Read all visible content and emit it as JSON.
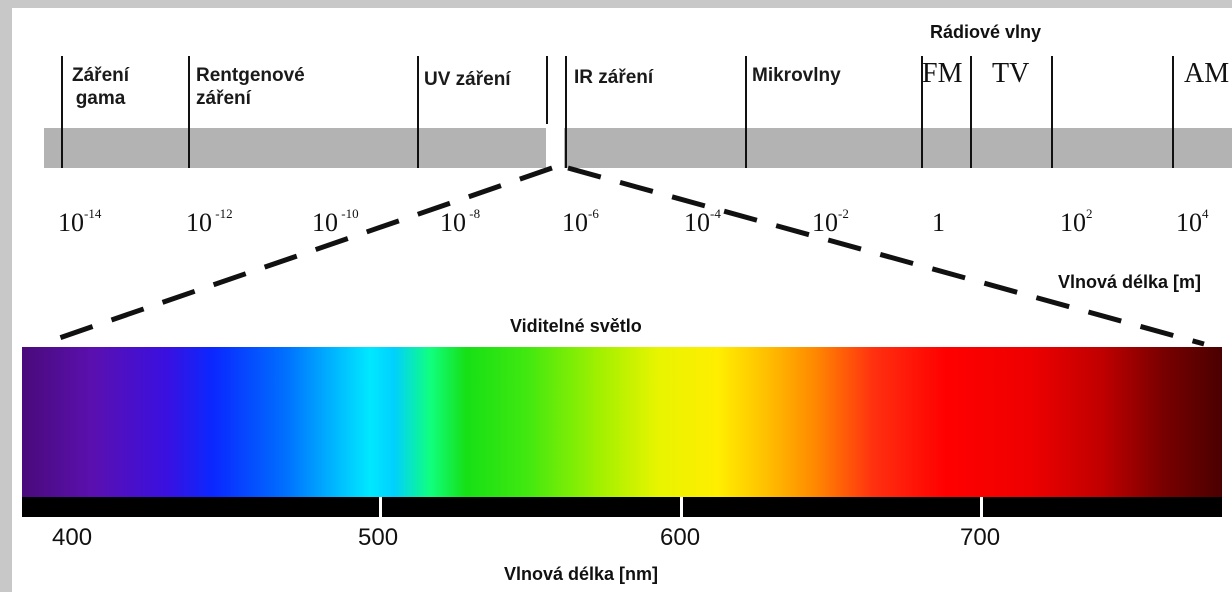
{
  "radio_heading": "Rádiové vlny",
  "bands": [
    {
      "label": "Záření\ngama"
    },
    {
      "label": "Rentgenové\nzáření"
    },
    {
      "label": "UV záření"
    },
    {
      "label": "IR záření"
    },
    {
      "label": "Mikrovlny"
    }
  ],
  "radio_bands": [
    "FM",
    "TV",
    "AM"
  ],
  "wavelength_scale": [
    {
      "base": "10",
      "exp": "-14"
    },
    {
      "base": "10",
      "exp": " -12"
    },
    {
      "base": "10",
      "exp": " -10"
    },
    {
      "base": "10",
      "exp": " -8"
    },
    {
      "base": "10",
      "exp": "-6"
    },
    {
      "base": "10",
      "exp": "-4"
    },
    {
      "base": "10",
      "exp": "-2"
    },
    {
      "base": "1",
      "exp": ""
    },
    {
      "base": "10",
      "exp": "2"
    },
    {
      "base": "10",
      "exp": "4"
    }
  ],
  "wavelength_axis_label_m": "Vlnová délka [m]",
  "visible_title": "Viditelné světlo",
  "visible_ticks": [
    "400",
    "500",
    "600",
    "700"
  ],
  "wavelength_axis_label_nm": "Vlnová délka [nm]",
  "colors": {
    "band_fill": "#b3b3b3",
    "violet": "#4a0a7a",
    "blue": "#0a28ff",
    "cyan": "#00e8ff",
    "green": "#16e016",
    "yellow": "#ffee00",
    "orange": "#ff8a00",
    "red": "#ff0000",
    "dark_red": "#4a0000"
  }
}
